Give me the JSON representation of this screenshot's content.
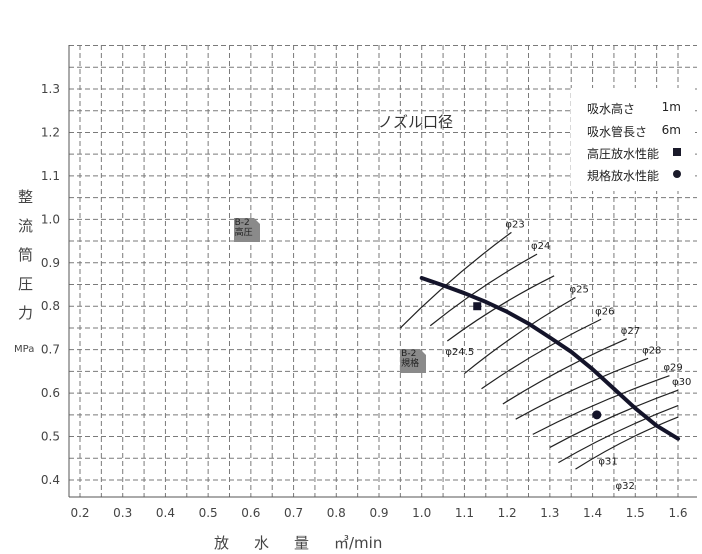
{
  "chart_data": {
    "type": "line",
    "title": "",
    "ylabel": [
      "整",
      "流",
      "筒",
      "圧",
      "力"
    ],
    "yunit": "MPa",
    "xlabel": [
      "放",
      "水",
      "量"
    ],
    "xunit": "㎥/min",
    "xlim": [
      0.2,
      1.6
    ],
    "ylim": [
      0.4,
      1.3
    ],
    "xticks": [
      "0.2",
      "0.3",
      "0.4",
      "0.5",
      "0.6",
      "0.7",
      "0.8",
      "0.9",
      "1.0",
      "1.1",
      "1.2",
      "1.3",
      "1.4",
      "1.5",
      "1.6"
    ],
    "yticks": [
      "0.4",
      "0.5",
      "0.6",
      "0.7",
      "0.8",
      "0.9",
      "1.0",
      "1.1",
      "1.2",
      "1.3"
    ],
    "grid": true,
    "annotation": "ノズル口径",
    "legend": {
      "position": "top-right",
      "items": [
        {
          "name": "吸水高さ",
          "value": "1m"
        },
        {
          "name": "吸水管長さ",
          "value": "6m"
        },
        {
          "name": "高圧放水性能",
          "marker": "square"
        },
        {
          "name": "規格放水性能",
          "marker": "circle"
        }
      ]
    },
    "pump_curve": {
      "x": [
        1.0,
        1.05,
        1.1,
        1.15,
        1.2,
        1.25,
        1.3,
        1.35,
        1.4,
        1.45,
        1.5,
        1.55,
        1.6
      ],
      "y": [
        0.865,
        0.848,
        0.83,
        0.81,
        0.787,
        0.76,
        0.728,
        0.695,
        0.655,
        0.61,
        0.565,
        0.525,
        0.495
      ]
    },
    "nozzle_curves": [
      {
        "label": "φ23",
        "x": [
          0.95,
          1.21
        ],
        "y": [
          0.75,
          0.97
        ]
      },
      {
        "label": "φ24",
        "x": [
          1.02,
          1.27
        ],
        "y": [
          0.755,
          0.92
        ]
      },
      {
        "label": "φ24.5",
        "x": [
          1.06,
          1.31
        ],
        "y": [
          0.72,
          0.87
        ]
      },
      {
        "label": "φ25",
        "x": [
          1.1,
          1.36
        ],
        "y": [
          0.645,
          0.82
        ]
      },
      {
        "label": "φ26",
        "x": [
          1.14,
          1.42
        ],
        "y": [
          0.61,
          0.77
        ]
      },
      {
        "label": "φ27",
        "x": [
          1.19,
          1.48
        ],
        "y": [
          0.575,
          0.725
        ]
      },
      {
        "label": "φ28",
        "x": [
          1.22,
          1.53
        ],
        "y": [
          0.54,
          0.68
        ]
      },
      {
        "label": "φ29",
        "x": [
          1.26,
          1.58
        ],
        "y": [
          0.505,
          0.64
        ]
      },
      {
        "label": "φ30",
        "x": [
          1.3,
          1.63
        ],
        "y": [
          0.475,
          0.62
        ]
      },
      {
        "label": "φ31",
        "x": [
          1.32,
          1.64
        ],
        "y": [
          0.44,
          0.59
        ]
      },
      {
        "label": "φ32",
        "x": [
          1.36,
          1.65
        ],
        "y": [
          0.425,
          0.57
        ]
      }
    ],
    "high_pressure_point": {
      "x": 1.13,
      "y": 0.8
    },
    "standard_point": {
      "x": 1.41,
      "y": 0.55
    },
    "rating_tags": [
      {
        "lines": [
          "B-2",
          "高圧"
        ],
        "x": 0.59,
        "y": 0.975
      },
      {
        "lines": [
          "B-2",
          "規格"
        ],
        "x": 0.98,
        "y": 0.675
      }
    ]
  }
}
